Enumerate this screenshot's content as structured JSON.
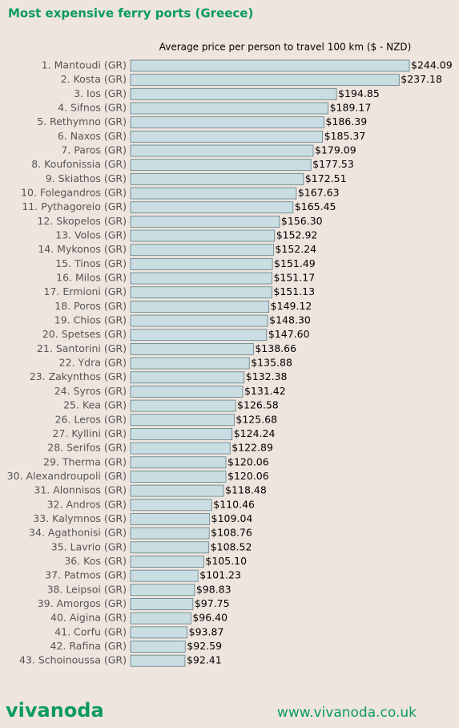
{
  "chart_data": {
    "type": "barh",
    "title": "Most expensive ferry ports (Greece)",
    "x_label": "Average price per person to travel 100 km ($ - NZD)",
    "categories": [
      "1. Mantoudi (GR)",
      "2. Kosta (GR)",
      "3. Ios (GR)",
      "4. Sifnos (GR)",
      "5. Rethymno (GR)",
      "6. Naxos (GR)",
      "7. Paros (GR)",
      "8. Koufonissia (GR)",
      "9. Skiathos (GR)",
      "10. Folegandros (GR)",
      "11. Pythagoreio (GR)",
      "12. Skopelos (GR)",
      "13. Volos (GR)",
      "14. Mykonos (GR)",
      "15. Tinos (GR)",
      "16. Milos (GR)",
      "17. Ermioni (GR)",
      "18. Poros (GR)",
      "19. Chios (GR)",
      "20. Spetses (GR)",
      "21. Santorini (GR)",
      "22. Ydra (GR)",
      "23. Zakynthos (GR)",
      "24. Syros (GR)",
      "25. Kea (GR)",
      "26. Leros (GR)",
      "27. Kyllini (GR)",
      "28. Serifos (GR)",
      "29. Therma (GR)",
      "30. Alexandroupoli (GR)",
      "31. Alonnisos (GR)",
      "32. Andros (GR)",
      "33. Kalymnos (GR)",
      "34. Agathonisi (GR)",
      "35. Lavrio (GR)",
      "36. Kos (GR)",
      "37. Patmos (GR)",
      "38. Leipsoi (GR)",
      "39. Amorgos (GR)",
      "40. Aigina (GR)",
      "41. Corfu (GR)",
      "42. Rafina (GR)",
      "43. Schoinoussa (GR)"
    ],
    "values": [
      244.09,
      237.18,
      194.85,
      189.17,
      186.39,
      185.37,
      179.09,
      177.53,
      172.51,
      167.63,
      165.45,
      156.3,
      152.92,
      152.24,
      151.49,
      151.17,
      151.13,
      149.12,
      148.3,
      147.6,
      138.66,
      135.88,
      132.38,
      131.42,
      126.58,
      125.68,
      124.24,
      122.89,
      120.06,
      120.06,
      118.48,
      110.46,
      109.04,
      108.76,
      108.52,
      105.1,
      101.23,
      98.83,
      97.75,
      96.4,
      93.87,
      92.59,
      92.41
    ],
    "value_labels": [
      "$244.09",
      "$237.18",
      "$194.85",
      "$189.17",
      "$186.39",
      "$185.37",
      "$179.09",
      "$177.53",
      "$172.51",
      "$167.63",
      "$165.45",
      "$156.30",
      "$152.92",
      "$152.24",
      "$151.49",
      "$151.17",
      "$151.13",
      "$149.12",
      "$148.30",
      "$147.60",
      "$138.66",
      "$135.88",
      "$132.38",
      "$131.42",
      "$126.58",
      "$125.68",
      "$124.24",
      "$122.89",
      "$120.06",
      "$120.06",
      "$118.48",
      "$110.46",
      "$109.04",
      "$108.76",
      "$108.52",
      "$105.10",
      "$101.23",
      "$98.83",
      "$97.75",
      "$96.40",
      "$93.87",
      "$92.59",
      "$92.41"
    ],
    "color": "#c9dde2",
    "xlim": [
      55.6,
      265.2
    ]
  },
  "footer": {
    "logo": "vivanoda",
    "url": "www.vivanoda.co.uk"
  }
}
